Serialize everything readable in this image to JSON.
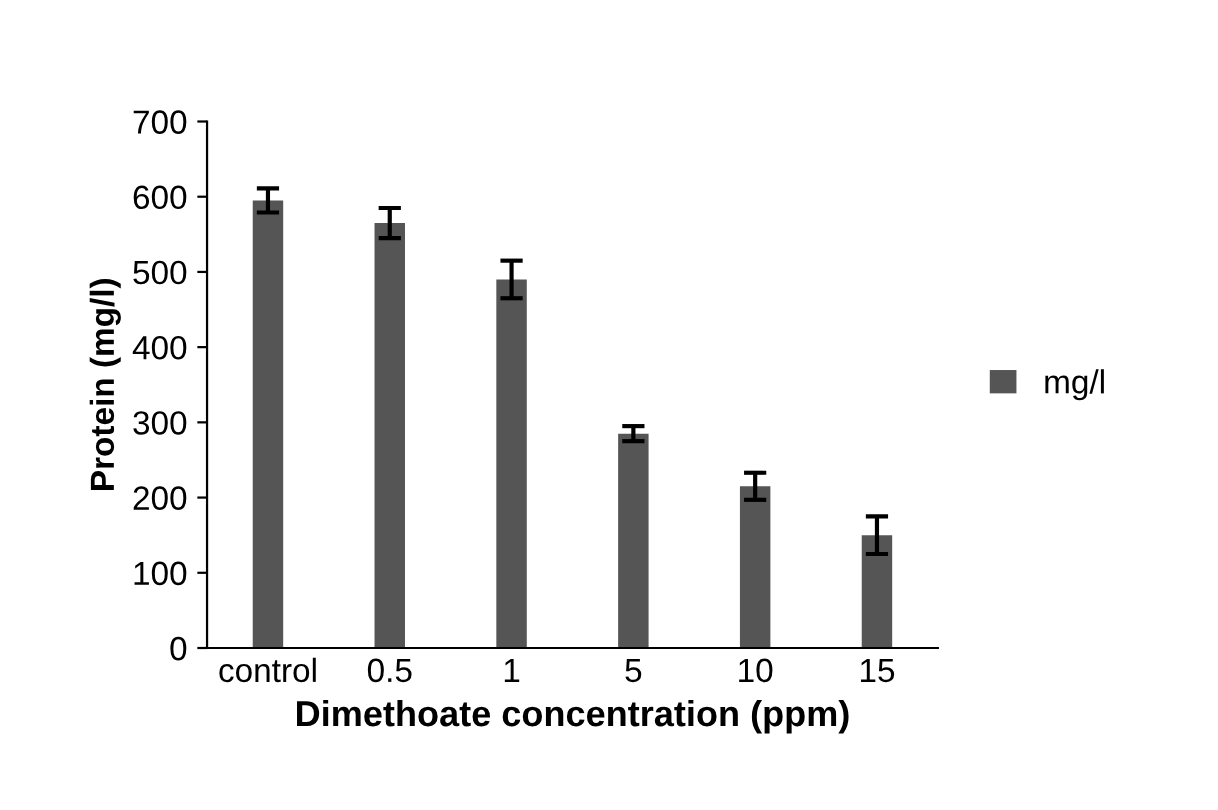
{
  "chart_data": {
    "type": "bar",
    "xlabel": "Dimethoate concentration (ppm)",
    "ylabel": "Protein (mg/l)",
    "categories": [
      "control",
      "0.5",
      "1",
      "5",
      "10",
      "15"
    ],
    "series": [
      {
        "name": "mg/l",
        "color": "#555555",
        "values": [
          595,
          565,
          490,
          285,
          215,
          150
        ],
        "errors": [
          16,
          20,
          25,
          10,
          18,
          25
        ]
      }
    ],
    "ylim": [
      0,
      700
    ],
    "yticks": [
      0,
      100,
      200,
      300,
      400,
      500,
      600,
      700
    ],
    "grid": false,
    "legend": "right"
  }
}
